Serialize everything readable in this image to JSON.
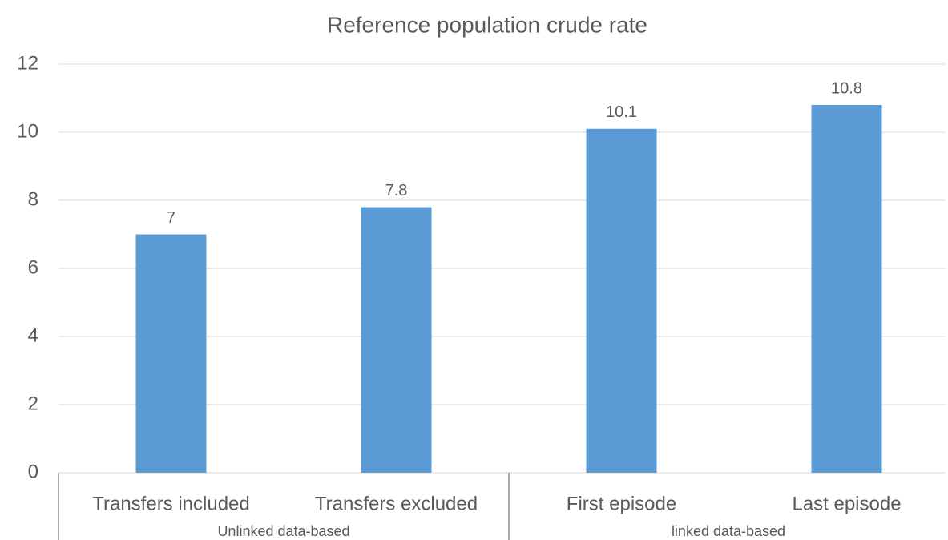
{
  "chart_data": {
    "type": "bar",
    "title": "Reference population crude rate",
    "categories": [
      "Transfers included",
      "Transfers excluded",
      "First episode",
      "Last episode"
    ],
    "values": [
      7,
      7.8,
      10.1,
      10.8
    ],
    "groups": [
      {
        "name": "Unlinked data-based",
        "count": 2
      },
      {
        "name": "linked data-based",
        "count": 2
      }
    ],
    "color": "#5b9bd5",
    "ylim": [
      0,
      12
    ],
    "yticks": [
      0,
      2,
      4,
      6,
      8,
      10,
      12
    ],
    "grid": true
  }
}
